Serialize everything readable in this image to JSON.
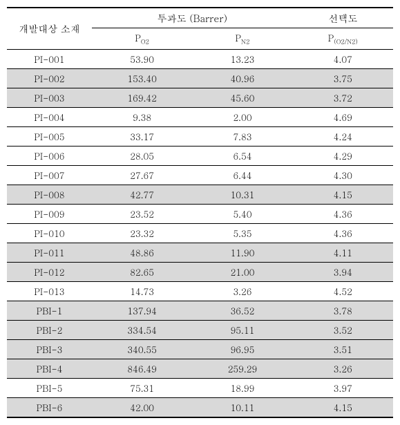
{
  "header": {
    "col1": "개발대상 소재",
    "group1": "투과도 (Barrer)",
    "group2": "선택도",
    "sub1_main": "P",
    "sub1_sub": "O2",
    "sub2_main": "P",
    "sub2_sub": "N2",
    "sub3_main": "P",
    "sub3_sub": "(O2/N2)"
  },
  "rows": [
    {
      "material": "PI-001",
      "po2": "53.90",
      "pn2": "13.23",
      "sel": "4.07",
      "highlighted": false,
      "section_end": false
    },
    {
      "material": "PI-002",
      "po2": "153.40",
      "pn2": "40.96",
      "sel": "3.75",
      "highlighted": true,
      "section_end": false
    },
    {
      "material": "PI-003",
      "po2": "169.42",
      "pn2": "45.60",
      "sel": "3.72",
      "highlighted": true,
      "section_end": false
    },
    {
      "material": "PI-004",
      "po2": "9.38",
      "pn2": "2.00",
      "sel": "4.69",
      "highlighted": false,
      "section_end": false
    },
    {
      "material": "PI-005",
      "po2": "33.17",
      "pn2": "7.83",
      "sel": "4.24",
      "highlighted": false,
      "section_end": false
    },
    {
      "material": "PI-006",
      "po2": "28.05",
      "pn2": "6.54",
      "sel": "4.29",
      "highlighted": false,
      "section_end": false
    },
    {
      "material": "PI-007",
      "po2": "27.67",
      "pn2": "6.44",
      "sel": "4.30",
      "highlighted": false,
      "section_end": false
    },
    {
      "material": "PI-008",
      "po2": "42.77",
      "pn2": "10.31",
      "sel": "4.15",
      "highlighted": true,
      "section_end": false
    },
    {
      "material": "PI-009",
      "po2": "23.52",
      "pn2": "5.40",
      "sel": "4.36",
      "highlighted": false,
      "section_end": false
    },
    {
      "material": "PI-010",
      "po2": "23.32",
      "pn2": "5.35",
      "sel": "4.36",
      "highlighted": false,
      "section_end": false
    },
    {
      "material": "PI-011",
      "po2": "48.86",
      "pn2": "11.90",
      "sel": "4.11",
      "highlighted": true,
      "section_end": false
    },
    {
      "material": "PI-012",
      "po2": "82.65",
      "pn2": "21.00",
      "sel": "3.94",
      "highlighted": true,
      "section_end": false
    },
    {
      "material": "PI-013",
      "po2": "14.73",
      "pn2": "3.26",
      "sel": "4.52",
      "highlighted": false,
      "section_end": true
    },
    {
      "material": "PBI-1",
      "po2": "137.94",
      "pn2": "36.52",
      "sel": "3.78",
      "highlighted": true,
      "section_end": false
    },
    {
      "material": "PBI-2",
      "po2": "334.54",
      "pn2": "95.11",
      "sel": "3.52",
      "highlighted": true,
      "section_end": false
    },
    {
      "material": "PBI-3",
      "po2": "340.55",
      "pn2": "96.95",
      "sel": "3.51",
      "highlighted": true,
      "section_end": false
    },
    {
      "material": "PBI-4",
      "po2": "846.49",
      "pn2": "259.29",
      "sel": "3.26",
      "highlighted": true,
      "section_end": false
    },
    {
      "material": "PBI-5",
      "po2": "75.31",
      "pn2": "18.99",
      "sel": "3.97",
      "highlighted": false,
      "section_end": false
    },
    {
      "material": "PBI-6",
      "po2": "42.00",
      "pn2": "10.11",
      "sel": "4.15",
      "highlighted": true,
      "section_end": false
    }
  ],
  "styling": {
    "highlight_color": "#d9d9d9",
    "background_color": "#ffffff",
    "font_family": "Malgun Gothic, Batang, serif",
    "base_font_size": 13,
    "header_font_size": 14,
    "subscript_font_size": 9,
    "border_thick": "2px solid #000",
    "border_thin": "1px solid #000",
    "column_widths": {
      "material": "22%",
      "po2": "26%",
      "pn2": "26%",
      "sel": "26%"
    }
  }
}
